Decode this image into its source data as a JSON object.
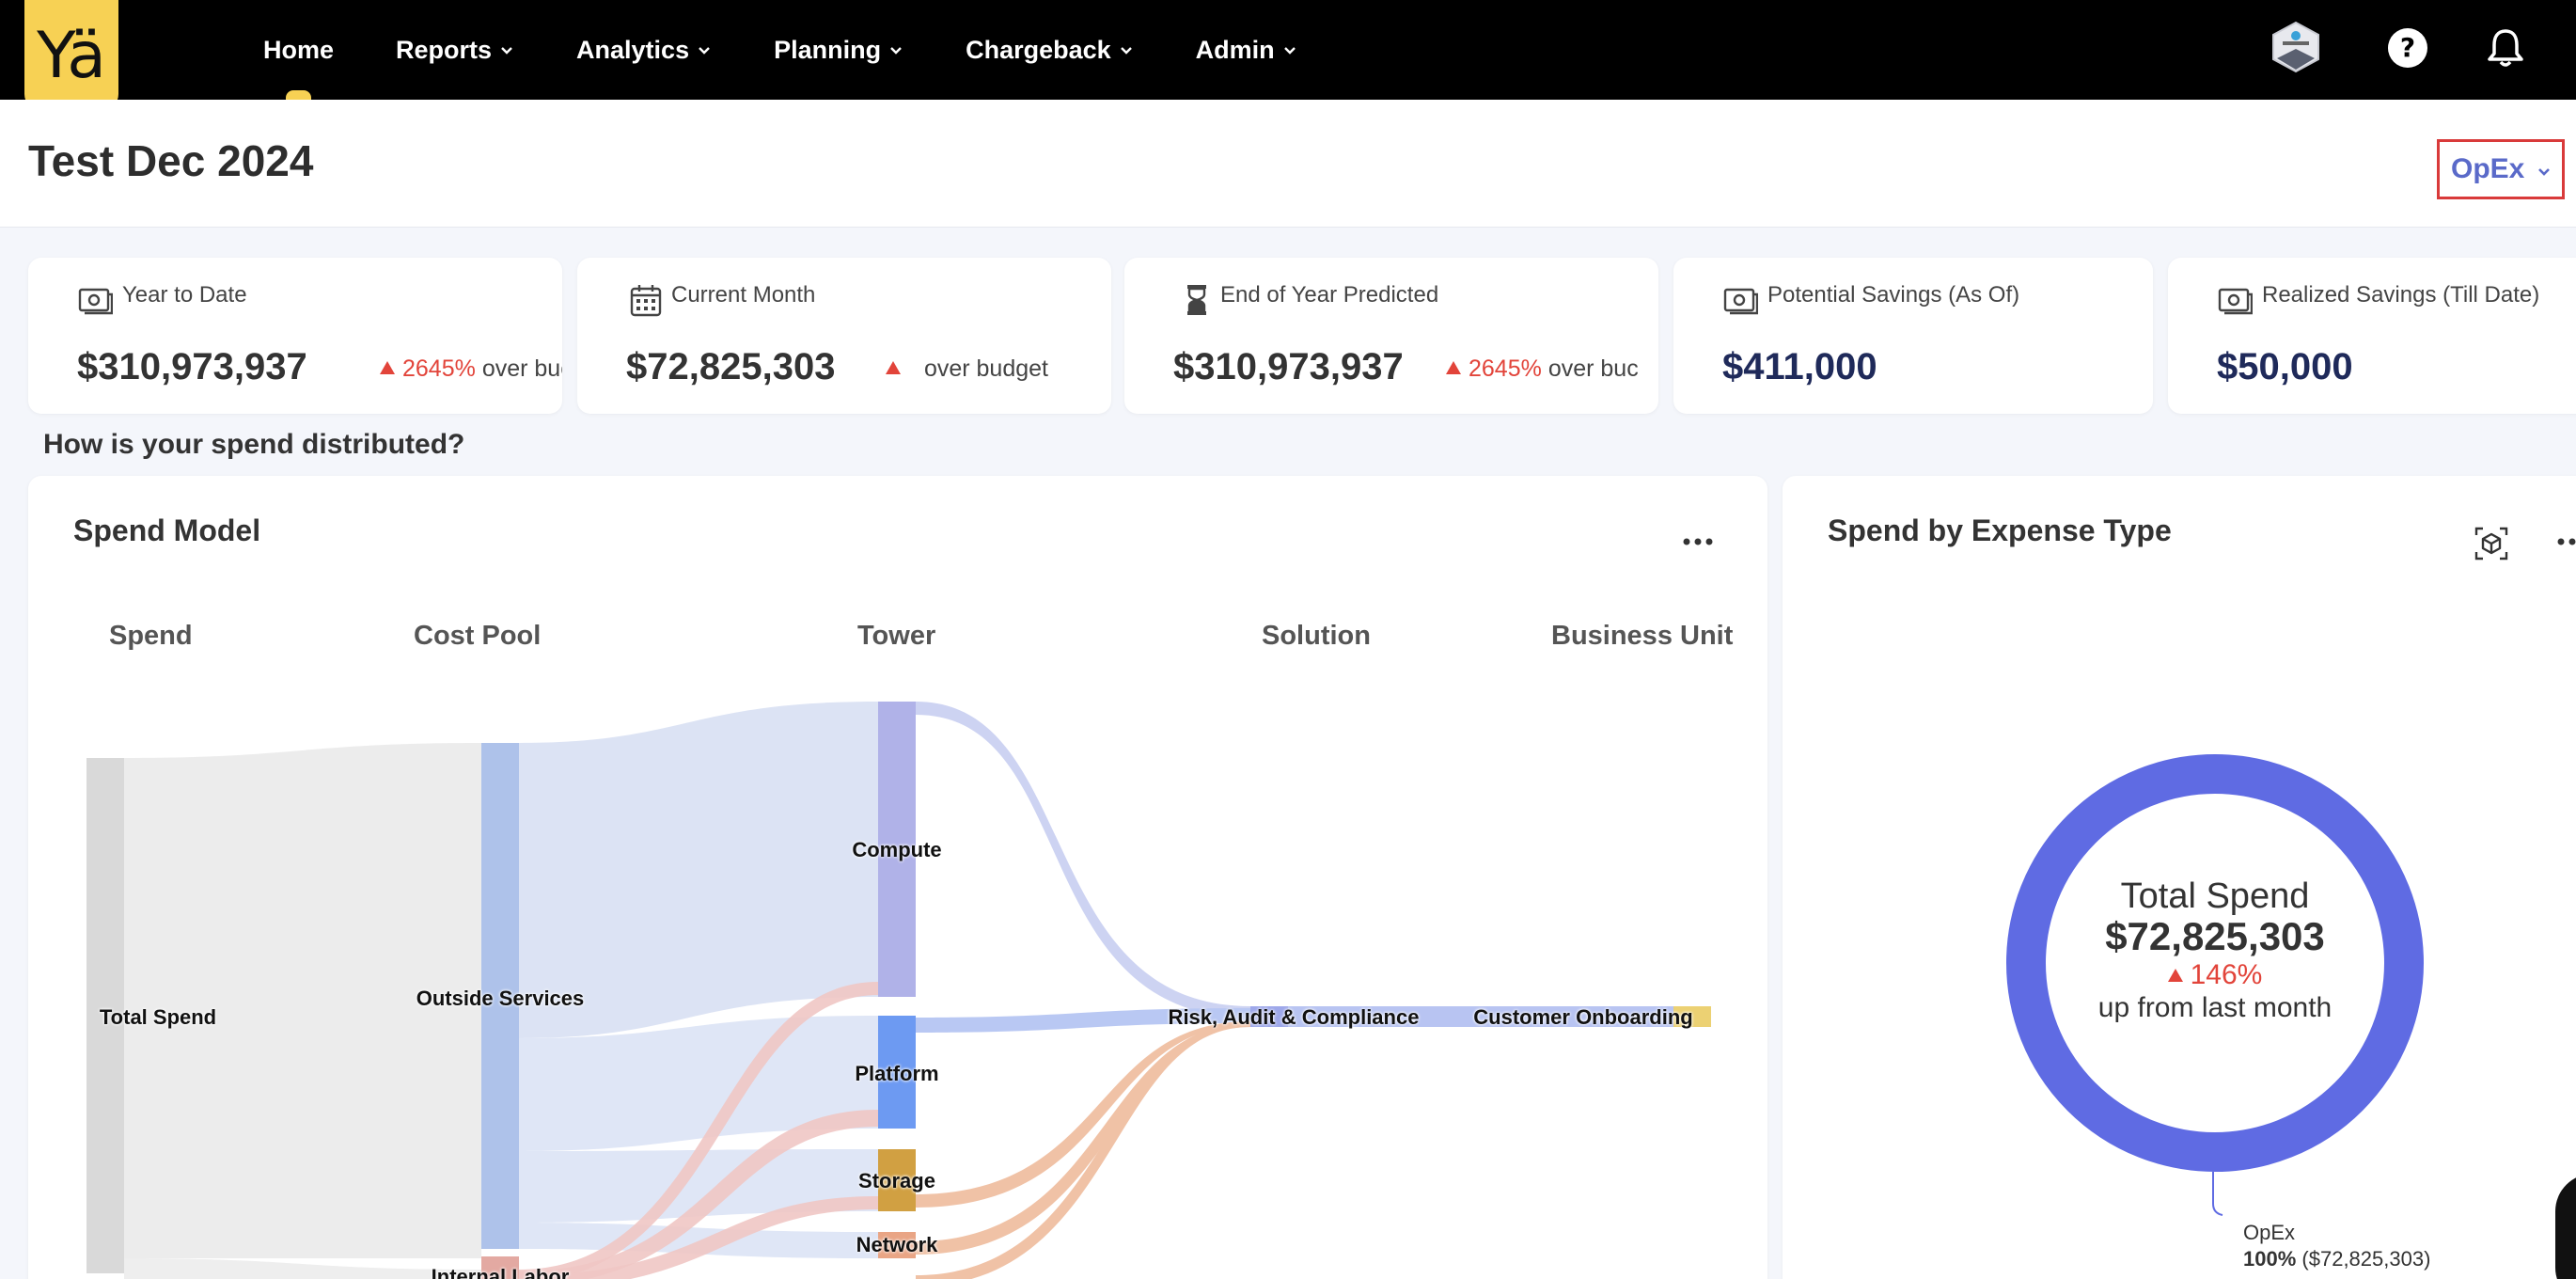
{
  "nav": {
    "logo": "Yä",
    "items": [
      {
        "label": "Home",
        "active": true,
        "dropdown": false
      },
      {
        "label": "Reports",
        "dropdown": true
      },
      {
        "label": "Analytics",
        "dropdown": true
      },
      {
        "label": "Planning",
        "dropdown": true
      },
      {
        "label": "Chargeback",
        "dropdown": true
      },
      {
        "label": "Admin",
        "dropdown": true
      }
    ],
    "icons": [
      "finops-badge-icon",
      "help-icon",
      "bell-icon"
    ]
  },
  "header": {
    "title": "Test Dec 2024",
    "select_value": "OpEx"
  },
  "kpis": [
    {
      "label": "Year to Date",
      "value": "$310,973,937",
      "trend_pct": "2645%",
      "trend_text": "over buc",
      "icon": "money-icon"
    },
    {
      "label": "Current Month",
      "value": "$72,825,303",
      "trend_pct": "",
      "trend_text": "over budget",
      "icon": "calendar-icon"
    },
    {
      "label": "End of Year Predicted",
      "value": "$310,973,937",
      "trend_pct": "2645%",
      "trend_text": "over buc",
      "icon": "hourglass-icon"
    },
    {
      "label": "Potential Savings (As Of)",
      "value": "$411,000",
      "icon": "money-icon"
    },
    {
      "label": "Realized Savings (Till Date)",
      "value": "$50,000",
      "icon": "money-icon"
    }
  ],
  "section_question": "How is your spend distributed?",
  "spend_model": {
    "title": "Spend Model",
    "columns": [
      "Spend",
      "Cost Pool",
      "Tower",
      "Solution",
      "Business Unit"
    ],
    "nodes": {
      "total_spend": "Total Spend",
      "outside_services": "Outside Services",
      "internal_labor": "Internal Labor",
      "compute": "Compute",
      "platform": "Platform",
      "storage": "Storage",
      "network": "Network",
      "risk": "Risk, Audit & Compliance",
      "customer_onboarding": "Customer Onboarding"
    }
  },
  "expense_type": {
    "title": "Spend by Expense Type",
    "center_title": "Total Spend",
    "center_value": "$72,825,303",
    "center_change": "146%",
    "center_sub": "up from last month",
    "legend_name": "OpEx",
    "legend_pct": "100%",
    "legend_amount": "($72,825,303)"
  },
  "chart_data": {
    "type": "pie",
    "categories": [
      "OpEx"
    ],
    "values": [
      72825303
    ],
    "title": "Spend by Expense Type"
  },
  "colors": {
    "nav_bg": "#000000",
    "accent_yellow": "#f7d154",
    "donut_blue": "#5f6be3",
    "up_red": "#e2443a",
    "navy": "#1f2a5a"
  }
}
